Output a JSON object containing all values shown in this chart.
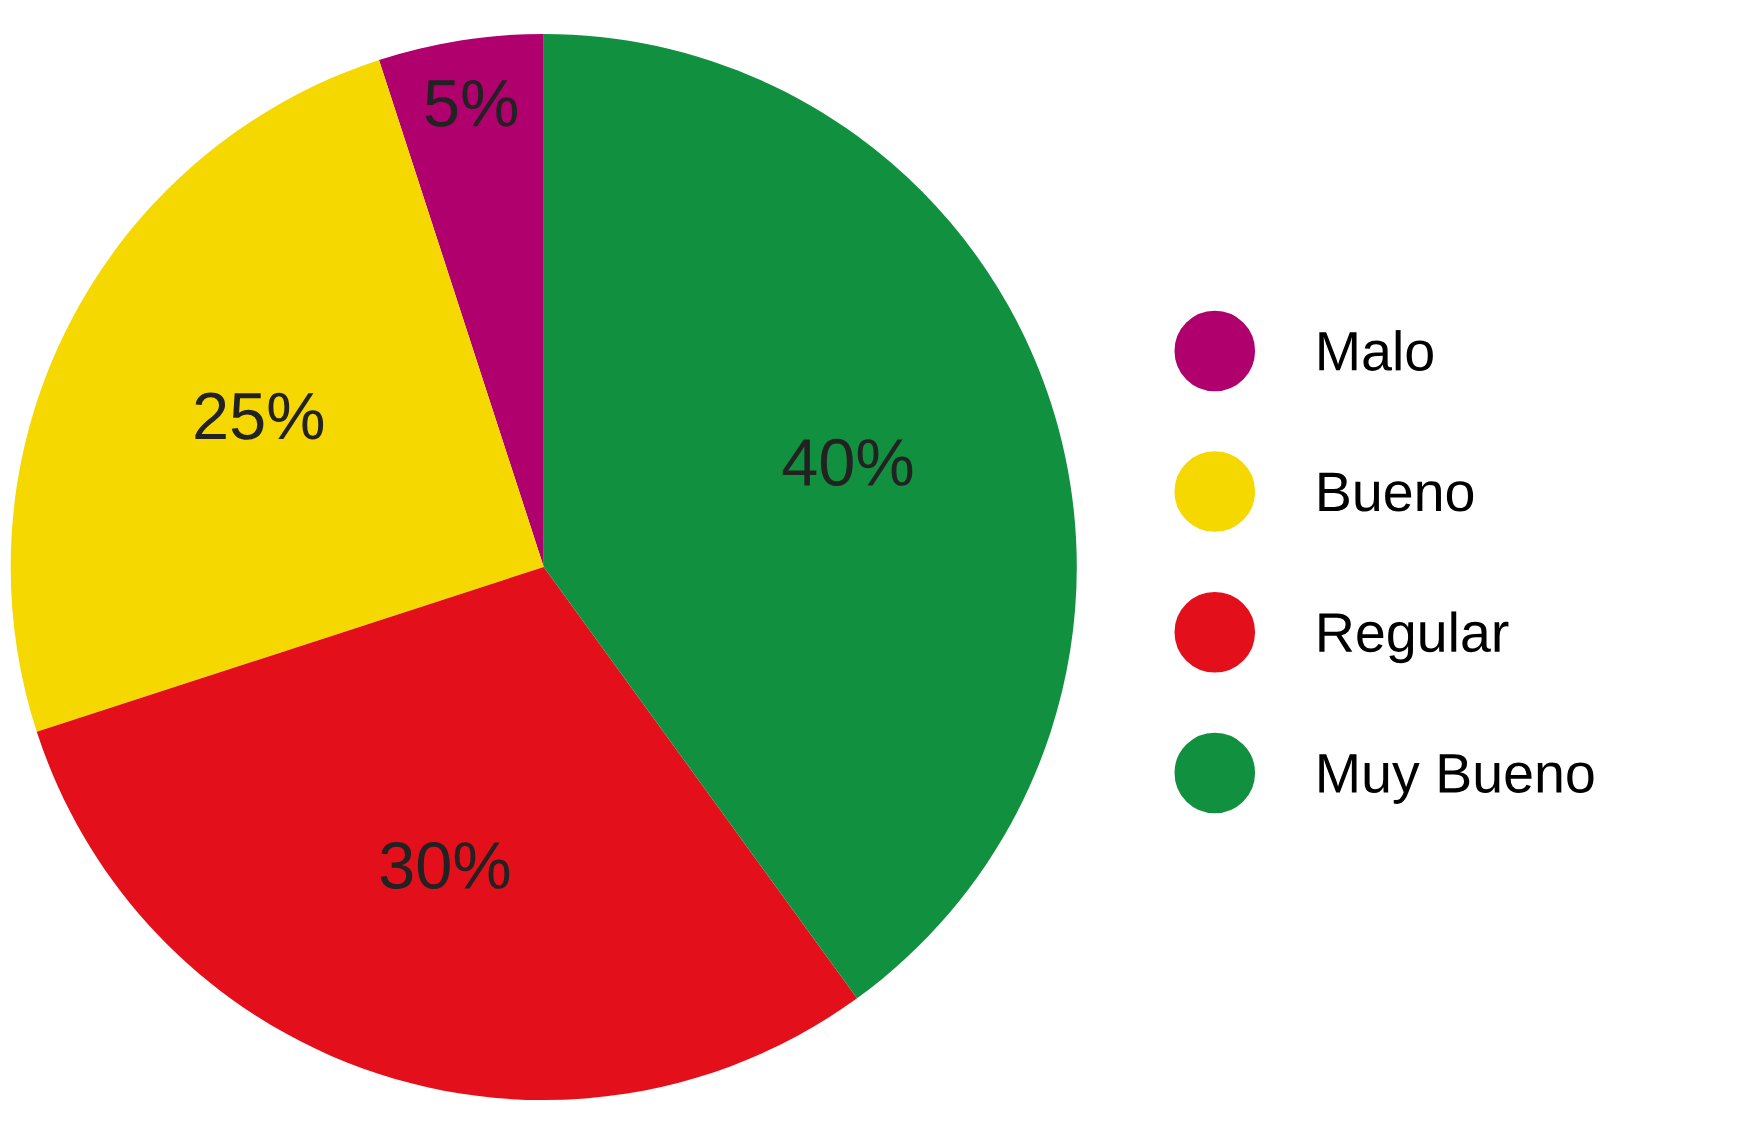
{
  "chart_data": {
    "type": "pie",
    "categories": [
      "Malo",
      "Bueno",
      "Regular",
      "Muy Bueno"
    ],
    "values": [
      5,
      25,
      30,
      40
    ],
    "colors": [
      "#b0006e",
      "#f5d800",
      "#e3101b",
      "#11903f"
    ],
    "value_labels": [
      "5%",
      "25%",
      "30%",
      "40%"
    ],
    "legend": "right"
  }
}
